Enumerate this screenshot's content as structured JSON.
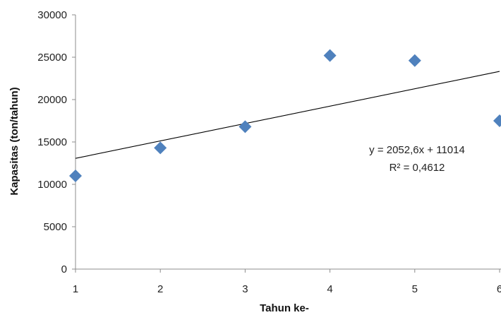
{
  "chart_data": {
    "type": "scatter",
    "title": "",
    "xlabel": "Tahun ke-",
    "ylabel": "Kapasitas (ton/tahun)",
    "xlim": [
      1,
      6
    ],
    "ylim": [
      0,
      30000
    ],
    "x_ticks": [
      "1",
      "2",
      "3",
      "4",
      "5",
      "6"
    ],
    "y_ticks": [
      "0",
      "5000",
      "10000",
      "15000",
      "20000",
      "25000",
      "30000"
    ],
    "grid": false,
    "legend": "none",
    "series": [
      {
        "x": [
          1,
          2,
          3,
          4,
          5,
          6
        ],
        "y": [
          11000,
          14300,
          16800,
          25200,
          24600,
          17500
        ],
        "marker": "diamond",
        "color": "#4F81BD"
      }
    ],
    "trendline": {
      "type": "linear",
      "slope": 2052.6,
      "intercept": 11014,
      "color": "#000000"
    },
    "annotations": {
      "equation": "y = 2052,6x + 11014",
      "r_squared": "R² = 0,4612"
    }
  }
}
